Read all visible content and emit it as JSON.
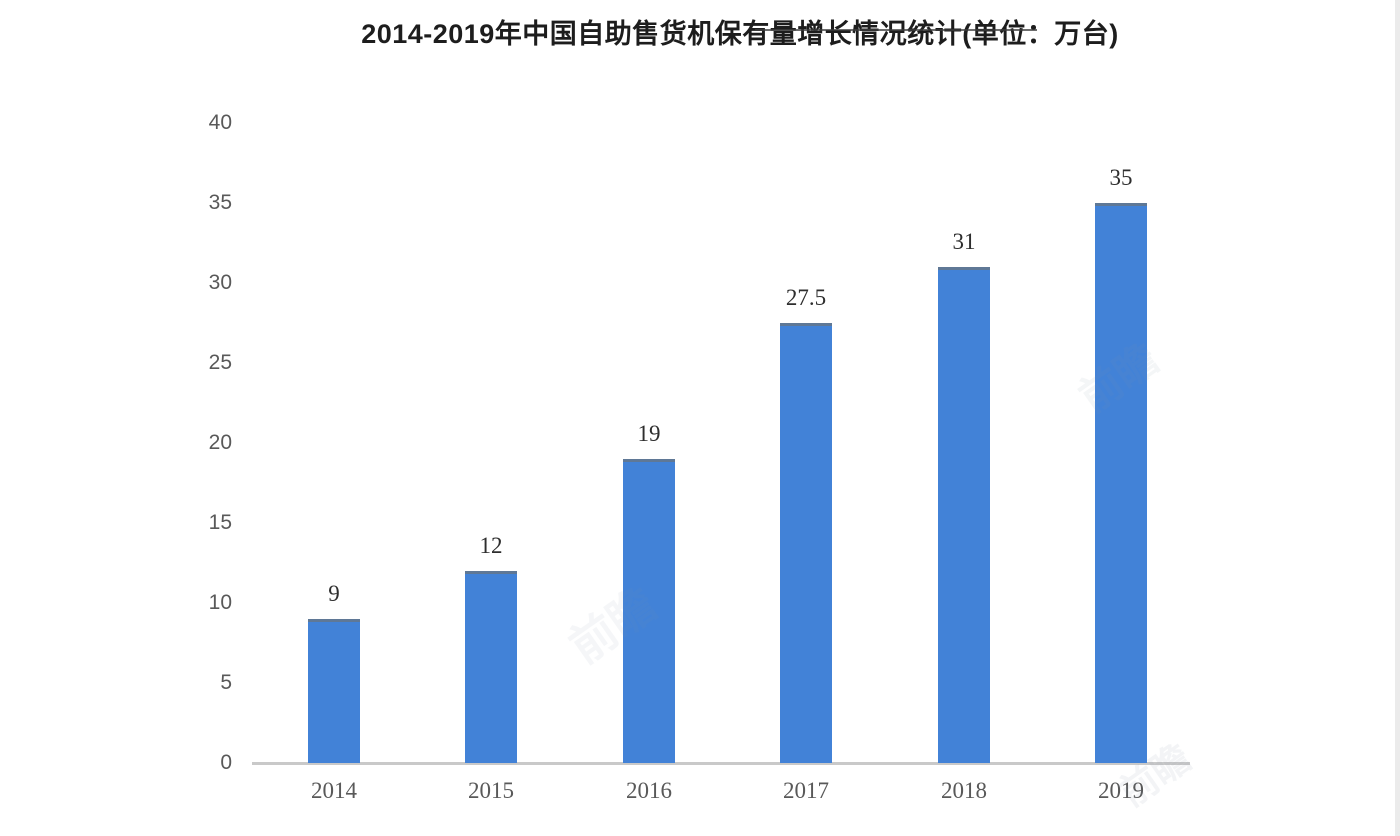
{
  "chart_data": {
    "type": "bar",
    "title": "2014-2019年中国自助售货机保有量增长情况统计(单位：万台)",
    "categories": [
      "2014",
      "2015",
      "2016",
      "2017",
      "2018",
      "2019"
    ],
    "values": [
      9,
      12,
      19,
      27.5,
      31,
      35
    ],
    "value_labels": [
      "9",
      "12",
      "19",
      "27.5",
      "31",
      "35"
    ],
    "unit": "万台",
    "xlabel": "",
    "ylabel": "",
    "ylim": [
      0,
      40
    ],
    "yticks": [
      0,
      5,
      10,
      15,
      20,
      25,
      30,
      35,
      40
    ],
    "grid": false,
    "legend": false,
    "colors": {
      "bar": "#4282d7",
      "bar_cap": "#5f7896",
      "title": "#1d1d1d",
      "axis_tick": "#595959",
      "value_label": "#2e2e2e",
      "baseline": "#c9c9c9"
    }
  },
  "watermark": {
    "text": "前瞻",
    "color": "#7f93a8"
  }
}
